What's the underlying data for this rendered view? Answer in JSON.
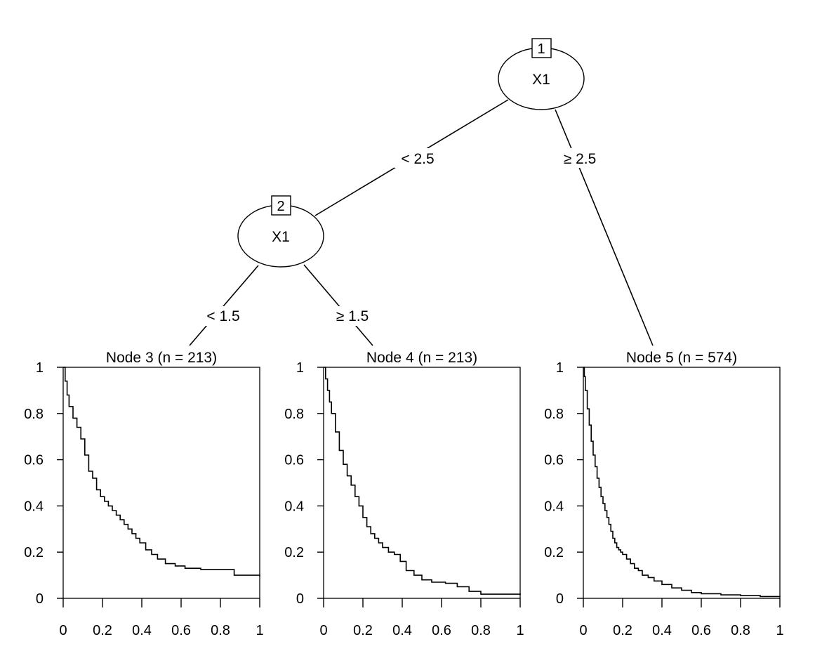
{
  "tree": {
    "inner_nodes": [
      {
        "id": "1",
        "variable": "X1"
      },
      {
        "id": "2",
        "variable": "X1"
      }
    ],
    "edges": [
      {
        "from": "1",
        "to": "2",
        "label": "< 2.5"
      },
      {
        "from": "1",
        "to": "5",
        "label": "≥ 2.5"
      },
      {
        "from": "2",
        "to": "3",
        "label": "< 1.5"
      },
      {
        "from": "2",
        "to": "4",
        "label": "≥ 1.5"
      }
    ]
  },
  "chart_data": [
    {
      "type": "line",
      "step": true,
      "title": "Node 3 (n = 213)",
      "xlim": [
        0,
        1
      ],
      "ylim": [
        0,
        1
      ],
      "xticks": [
        "0",
        "0.2",
        "0.4",
        "0.6",
        "0.8",
        "1"
      ],
      "yticks": [
        "0",
        "0.2",
        "0.4",
        "0.6",
        "0.8",
        "1"
      ],
      "x": [
        0,
        0.01,
        0.02,
        0.03,
        0.05,
        0.07,
        0.09,
        0.11,
        0.13,
        0.15,
        0.17,
        0.19,
        0.21,
        0.23,
        0.25,
        0.27,
        0.29,
        0.31,
        0.33,
        0.35,
        0.37,
        0.39,
        0.42,
        0.45,
        0.48,
        0.52,
        0.57,
        0.62,
        0.7,
        0.87,
        1.0
      ],
      "y": [
        1,
        0.94,
        0.88,
        0.83,
        0.78,
        0.74,
        0.69,
        0.62,
        0.55,
        0.52,
        0.47,
        0.44,
        0.42,
        0.4,
        0.38,
        0.36,
        0.34,
        0.32,
        0.3,
        0.28,
        0.26,
        0.24,
        0.21,
        0.19,
        0.17,
        0.15,
        0.14,
        0.13,
        0.125,
        0.1,
        0.095
      ]
    },
    {
      "type": "line",
      "step": true,
      "title": "Node 4 (n = 213)",
      "xlim": [
        0,
        1
      ],
      "ylim": [
        0,
        1
      ],
      "xticks": [
        "0",
        "0.2",
        "0.4",
        "0.6",
        "0.8",
        "1"
      ],
      "yticks": [
        "0",
        "0.2",
        "0.4",
        "0.6",
        "0.8",
        "1"
      ],
      "x": [
        0,
        0.01,
        0.02,
        0.03,
        0.04,
        0.06,
        0.08,
        0.1,
        0.12,
        0.14,
        0.16,
        0.18,
        0.2,
        0.22,
        0.24,
        0.26,
        0.28,
        0.3,
        0.33,
        0.36,
        0.39,
        0.42,
        0.46,
        0.5,
        0.55,
        0.62,
        0.68,
        0.74,
        0.8,
        1.0
      ],
      "y": [
        1,
        0.95,
        0.9,
        0.85,
        0.8,
        0.72,
        0.64,
        0.58,
        0.53,
        0.49,
        0.44,
        0.4,
        0.35,
        0.31,
        0.28,
        0.26,
        0.24,
        0.22,
        0.2,
        0.19,
        0.16,
        0.12,
        0.1,
        0.08,
        0.07,
        0.065,
        0.05,
        0.03,
        0.018,
        0.015
      ]
    },
    {
      "type": "line",
      "step": true,
      "title": "Node 5 (n = 574)",
      "xlim": [
        0,
        1
      ],
      "ylim": [
        0,
        1
      ],
      "xticks": [
        "0",
        "0.2",
        "0.4",
        "0.6",
        "0.8",
        "1"
      ],
      "yticks": [
        "0",
        "0.2",
        "0.4",
        "0.6",
        "0.8",
        "1"
      ],
      "x": [
        0,
        0.005,
        0.01,
        0.02,
        0.03,
        0.04,
        0.05,
        0.06,
        0.07,
        0.08,
        0.09,
        0.1,
        0.11,
        0.12,
        0.13,
        0.14,
        0.15,
        0.16,
        0.17,
        0.18,
        0.19,
        0.2,
        0.22,
        0.24,
        0.26,
        0.28,
        0.3,
        0.33,
        0.36,
        0.4,
        0.45,
        0.5,
        0.55,
        0.6,
        0.7,
        0.8,
        0.9,
        1.0
      ],
      "y": [
        1,
        0.96,
        0.9,
        0.82,
        0.75,
        0.68,
        0.62,
        0.57,
        0.52,
        0.48,
        0.44,
        0.41,
        0.38,
        0.35,
        0.32,
        0.29,
        0.26,
        0.24,
        0.22,
        0.21,
        0.2,
        0.19,
        0.17,
        0.15,
        0.13,
        0.12,
        0.1,
        0.09,
        0.075,
        0.06,
        0.045,
        0.035,
        0.025,
        0.02,
        0.015,
        0.012,
        0.008,
        0.006
      ]
    }
  ]
}
